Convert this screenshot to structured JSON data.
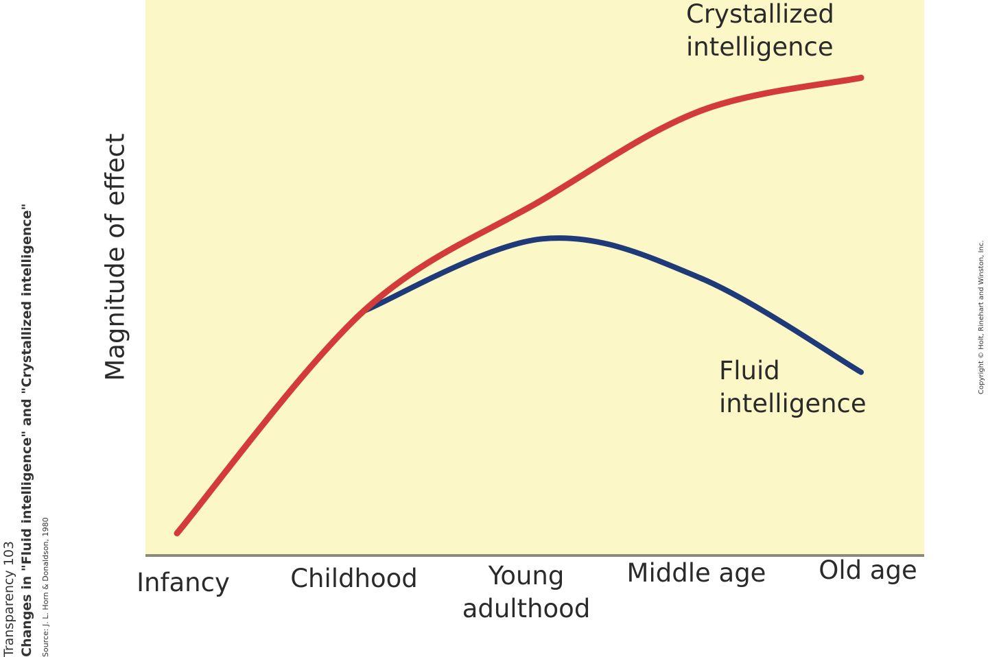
{
  "chart_data": {
    "type": "line",
    "title": "",
    "xlabel": "",
    "ylabel": "Magnitude of effect",
    "categories": [
      "Infancy",
      "Childhood",
      "Young\nadulthood",
      "Middle age",
      "Old age"
    ],
    "ylim": [
      0,
      100
    ],
    "grid": false,
    "series": [
      {
        "name": "Crystallized\nintelligence",
        "color": "#d33b3b",
        "values": [
          4,
          44,
          64,
          80,
          86
        ]
      },
      {
        "name": "Fluid\nintelligence",
        "color": "#1f3a78",
        "values": [
          null,
          44,
          57,
          50,
          33
        ]
      }
    ],
    "background_color": "#fcf7c6"
  },
  "side_caption": {
    "line1": "Transparency 103",
    "line2": "Changes in \"Fluid intelligence\" and \"Crystallized intelligence\"",
    "line3": "Source: J. L. Horn & Donaldson, 1980"
  },
  "copyright": "Copyright © Holt, Rinehart and Winston, Inc."
}
